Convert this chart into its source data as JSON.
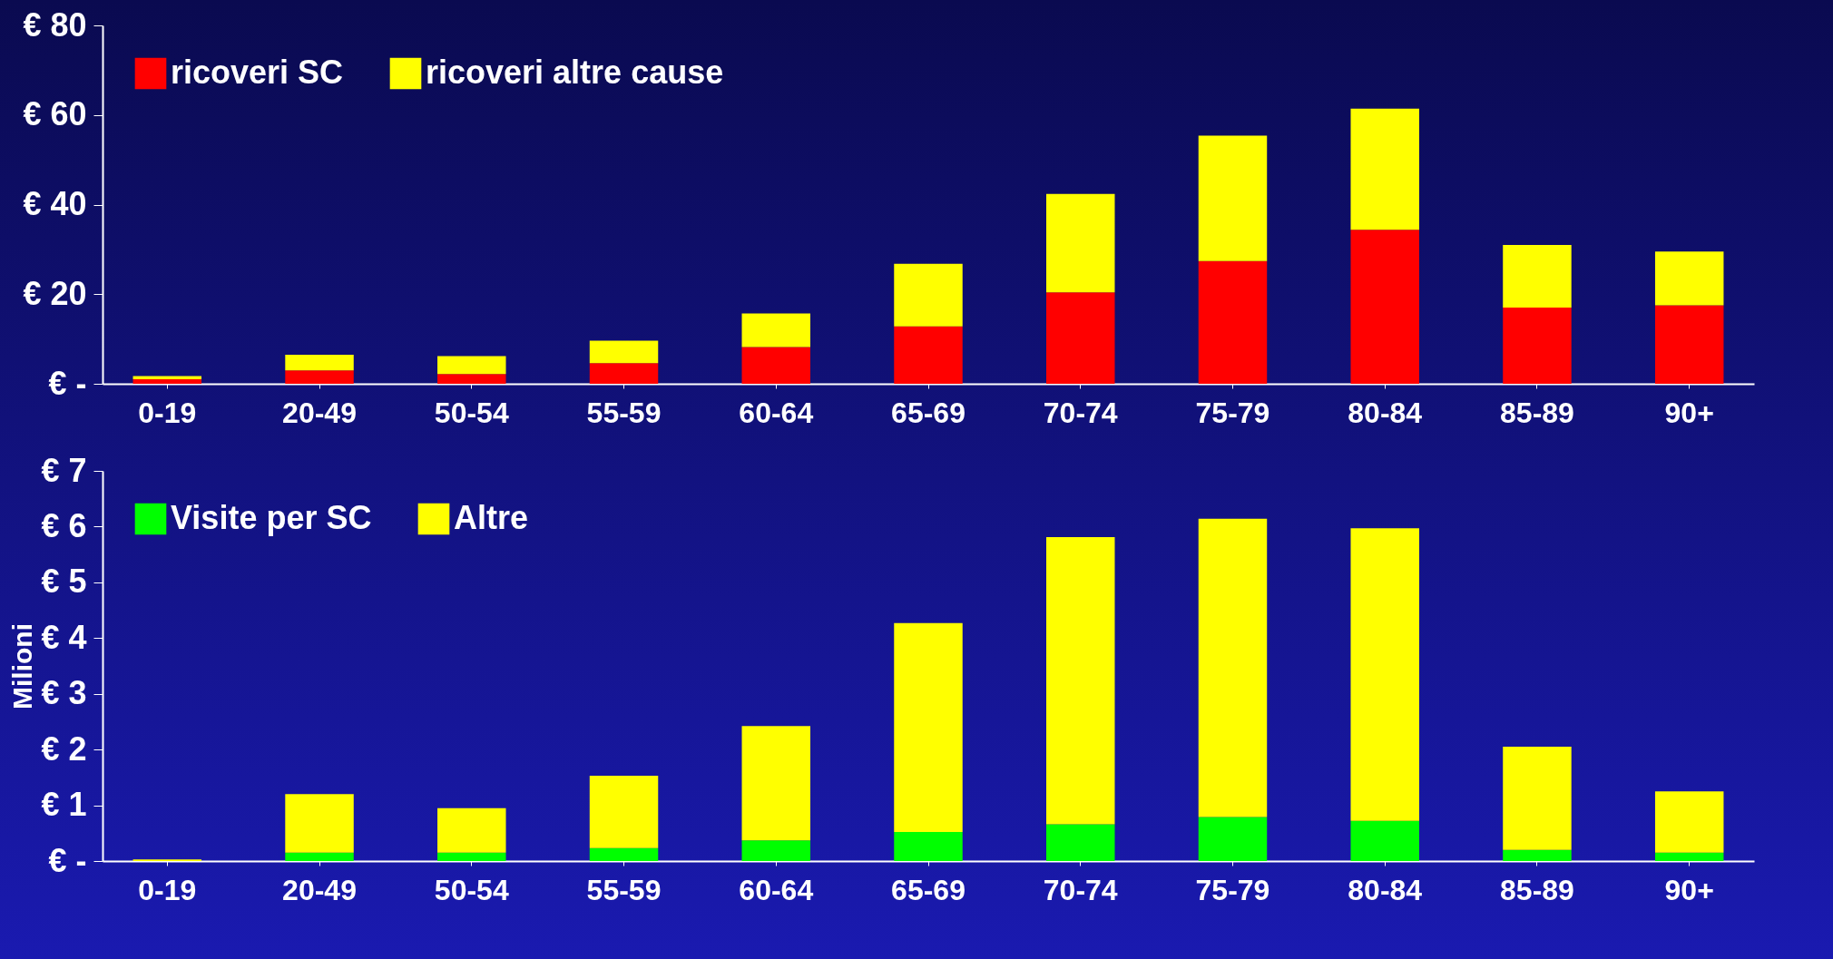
{
  "chart_data": [
    {
      "type": "bar",
      "stacked": true,
      "categories": [
        "0-19",
        "20-49",
        "50-54",
        "55-59",
        "60-64",
        "65-69",
        "70-74",
        "75-79",
        "80-84",
        "85-89",
        "90+"
      ],
      "series": [
        {
          "name": "ricoveri SC",
          "color": "#ff0000",
          "values": [
            1,
            3,
            2.2,
            4.6,
            8.2,
            12.8,
            20.4,
            27.4,
            34.4,
            17,
            17.5
          ]
        },
        {
          "name": "ricoveri altre cause",
          "color": "#ffff00",
          "values": [
            0.7,
            3.5,
            4,
            5,
            7.5,
            14,
            22,
            28,
            27,
            14,
            12
          ]
        }
      ],
      "ylim": [
        0,
        80
      ],
      "yticks": [
        {
          "value": 0,
          "label": "€ -"
        },
        {
          "value": 20,
          "label": "€ 20"
        },
        {
          "value": 40,
          "label": "€ 40"
        },
        {
          "value": 60,
          "label": "€ 60"
        },
        {
          "value": 80,
          "label": "€ 80"
        }
      ],
      "grid": false,
      "legend": "top left"
    },
    {
      "type": "bar",
      "stacked": true,
      "ylabel": "Milioni",
      "categories": [
        "0-19",
        "20-49",
        "50-54",
        "55-59",
        "60-64",
        "65-69",
        "70-74",
        "75-79",
        "80-84",
        "85-89",
        "90+"
      ],
      "series": [
        {
          "name": "Visite per SC",
          "color": "#00ff00",
          "values": [
            null,
            0.15,
            0.15,
            0.23,
            0.37,
            0.52,
            0.66,
            0.79,
            0.72,
            0.2,
            0.15
          ]
        },
        {
          "name": "Altre",
          "color": "#ffff00",
          "values": [
            0.03,
            1.05,
            0.8,
            1.3,
            2.05,
            3.75,
            5.15,
            5.35,
            5.25,
            1.85,
            1.1
          ]
        }
      ],
      "ylim": [
        0,
        7
      ],
      "yticks": [
        {
          "value": 0,
          "label": "€ -"
        },
        {
          "value": 1,
          "label": "€ 1"
        },
        {
          "value": 2,
          "label": "€ 2"
        },
        {
          "value": 3,
          "label": "€ 3"
        },
        {
          "value": 4,
          "label": "€ 4"
        },
        {
          "value": 5,
          "label": "€ 5"
        },
        {
          "value": 6,
          "label": "€ 6"
        },
        {
          "value": 7,
          "label": "€ 7"
        }
      ],
      "grid": false,
      "legend": "top left"
    }
  ]
}
